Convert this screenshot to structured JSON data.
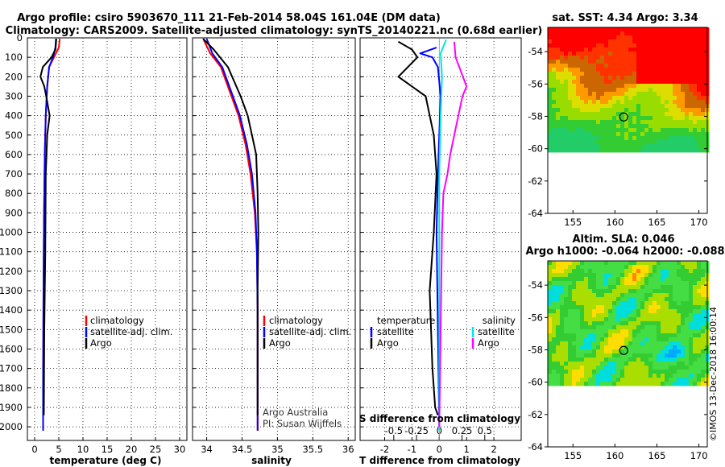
{
  "header": {
    "title_line1": "Argo profile: csiro 5903670_111 21-Feb-2014 58.04S 161.04E (DM data)",
    "title_line2": "Climatology: CARS2009. Satellite-adjusted climatology: synTS_20140221.nc (0.68d earlier)"
  },
  "colors": {
    "climatology": "#ff0000",
    "satellite": "#0000ff",
    "argo": "#000000",
    "satellite_s": "#00e5e5",
    "argo_s": "#ff00ff"
  },
  "chart_data": [
    {
      "type": "line",
      "xlabel": "temperature (deg C)",
      "ylabel": "",
      "xlim": [
        -1.5,
        31.5
      ],
      "ylim": [
        2070,
        0
      ],
      "xticks": [
        "0",
        "5",
        "10",
        "15",
        "20",
        "25",
        "30"
      ],
      "yticks": [
        "0",
        "100",
        "200",
        "300",
        "400",
        "500",
        "600",
        "700",
        "800",
        "900",
        "1000",
        "1100",
        "1200",
        "1300",
        "1400",
        "1500",
        "1600",
        "1700",
        "1800",
        "1900",
        "2000"
      ],
      "legend": [
        "climatology",
        "satellite-adj. clim.",
        "Argo"
      ],
      "series": [
        {
          "name": "climatology",
          "color": "#ff0000",
          "x": [
            5.2,
            5.0,
            4.0,
            3.0,
            2.6,
            2.3,
            2.1,
            1.95,
            1.85,
            1.8,
            1.75,
            1.75
          ],
          "y": [
            5,
            50,
            100,
            150,
            250,
            400,
            600,
            900,
            1200,
            1500,
            1800,
            2020
          ]
        },
        {
          "name": "satellite-adj. clim.",
          "color": "#0000ff",
          "x": [
            4.4,
            4.3,
            3.8,
            3.0,
            2.6,
            2.3,
            2.1,
            1.95,
            1.85,
            1.8,
            1.75,
            1.75
          ],
          "y": [
            5,
            50,
            100,
            150,
            250,
            400,
            600,
            900,
            1200,
            1500,
            1800,
            2020
          ]
        },
        {
          "name": "Argo",
          "color": "#000000",
          "x": [
            4.5,
            4.3,
            3.5,
            1.7,
            1.2,
            2.0,
            2.4,
            3.1,
            2.6,
            2.3,
            2.25,
            2.2,
            2.1,
            2.0,
            1.95,
            1.9
          ],
          "y": [
            5,
            60,
            100,
            150,
            200,
            250,
            300,
            400,
            500,
            700,
            900,
            1100,
            1300,
            1500,
            1700,
            1940
          ]
        }
      ]
    },
    {
      "type": "line",
      "xlabel": "salinity",
      "ylabel": "",
      "xlim": [
        33.8,
        36.1
      ],
      "ylim": [
        2070,
        0
      ],
      "xticks": [
        "34",
        "34.5",
        "35",
        "35.5",
        "36"
      ],
      "legend": [
        "climatology",
        "satellite-adj. clim.",
        "Argo"
      ],
      "series": [
        {
          "name": "climatology",
          "color": "#ff0000",
          "x": [
            33.95,
            34.05,
            34.2,
            34.35,
            34.45,
            34.55,
            34.62,
            34.68,
            34.71,
            34.72,
            34.72,
            34.72
          ],
          "y": [
            5,
            80,
            150,
            300,
            400,
            550,
            700,
            900,
            1100,
            1400,
            1700,
            2020
          ]
        },
        {
          "name": "satellite-adj. clim.",
          "color": "#0000ff",
          "x": [
            34.0,
            34.08,
            34.22,
            34.37,
            34.47,
            34.57,
            34.64,
            34.69,
            34.71,
            34.72,
            34.72,
            34.72
          ],
          "y": [
            5,
            80,
            150,
            300,
            400,
            550,
            700,
            900,
            1100,
            1400,
            1700,
            2020
          ]
        },
        {
          "name": "Argo",
          "color": "#000000",
          "x": [
            33.95,
            34.1,
            34.3,
            34.48,
            34.58,
            34.64,
            34.7,
            34.72,
            34.73,
            34.72,
            34.72,
            34.72
          ],
          "y": [
            5,
            60,
            150,
            300,
            400,
            500,
            600,
            800,
            1000,
            1300,
            1600,
            1940
          ]
        }
      ],
      "annotation": [
        "Argo Australia",
        "PI: Susan Wijffels"
      ]
    },
    {
      "type": "line",
      "xlabel": "T difference from climatology",
      "xlabel2": "S difference from climatology",
      "ylabel": "",
      "xlim": [
        -2.9,
        3.0
      ],
      "ylim": [
        2070,
        0
      ],
      "xticks": [
        "-2",
        "-1",
        "0",
        "1",
        "2"
      ],
      "xticks2": [
        "-0.5",
        "-0.25",
        "0",
        "0.25",
        "0.5"
      ],
      "legend_left": [
        "temperature",
        "satellite",
        "Argo"
      ],
      "legend_right": [
        "salinity",
        "satellite",
        "Argo"
      ],
      "series": [
        {
          "name": "satellite",
          "color": "#0000ff",
          "x": [
            -0.1,
            -0.7,
            -0.25,
            -0.05,
            0.05,
            0.0,
            -0.05,
            -0.1,
            -0.05,
            0.0
          ],
          "y": [
            50,
            80,
            100,
            150,
            300,
            500,
            700,
            1000,
            1500,
            2000
          ]
        },
        {
          "name": "Argo",
          "color": "#000000",
          "x": [
            -1.5,
            -1.0,
            -0.8,
            -1.5,
            -0.5,
            -0.2,
            -0.1,
            -0.2,
            -0.35,
            -0.3,
            -0.25,
            -0.15,
            -0.05
          ],
          "y": [
            20,
            60,
            100,
            200,
            300,
            500,
            700,
            1000,
            1300,
            1500,
            1700,
            1900,
            1940
          ]
        },
        {
          "name": "satellite_s",
          "color": "#00e5e5",
          "x": [
            0.25,
            0.05,
            0.1,
            0.05,
            0.0,
            0.0,
            0.0,
            0.0
          ],
          "y": [
            10,
            80,
            200,
            400,
            700,
            1000,
            1500,
            2020
          ]
        },
        {
          "name": "Argo_s",
          "color": "#ff00ff",
          "x": [
            0.55,
            0.6,
            1.0,
            0.85,
            0.7,
            0.55,
            0.4,
            0.3,
            0.15,
            0.1,
            0.05,
            0.0
          ],
          "y": [
            20,
            100,
            250,
            300,
            400,
            500,
            600,
            700,
            800,
            1000,
            1500,
            2000
          ]
        }
      ]
    }
  ],
  "maps": [
    {
      "title": "sat. SST: 4.34 Argo: 3.34",
      "xticks": [
        "155",
        "160",
        "165",
        "170"
      ],
      "yticks": [
        "-54",
        "-56",
        "-58",
        "-60",
        "-62",
        "-64"
      ],
      "lon_range": [
        152,
        171
      ],
      "lat_range": [
        -64,
        -52.5
      ],
      "data_lat_min": -60.0,
      "float_lon": 161.04,
      "float_lat": -58.04
    },
    {
      "title": "Altim. SLA: 0.046",
      "subtitle": "Argo h1000: -0.064 h2000: -0.088",
      "xticks": [
        "155",
        "160",
        "165",
        "170"
      ],
      "yticks": [
        "-54",
        "-56",
        "-58",
        "-60",
        "-62",
        "-64"
      ],
      "lon_range": [
        152,
        171
      ],
      "lat_range": [
        -64,
        -52.5
      ],
      "data_lat_min": -60.0,
      "float_lon": 161.04,
      "float_lat": -58.04
    }
  ],
  "footer": {
    "stamp": "©IMOS 13-Dec-2018 16:00:14"
  }
}
